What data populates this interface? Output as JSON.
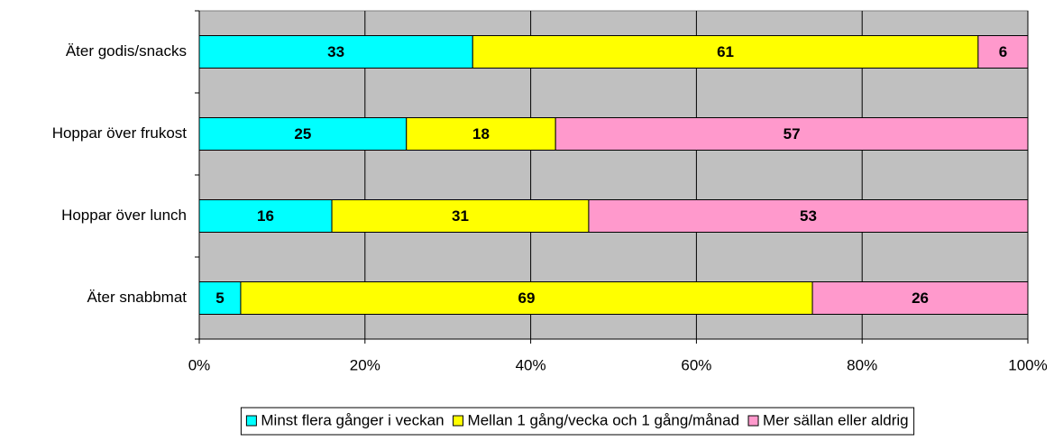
{
  "chart_data": {
    "type": "stacked_barh",
    "categories": [
      "Äter godis/snacks",
      "Hoppar över frukost",
      "Hoppar över lunch",
      "Äter snabbmat"
    ],
    "series": [
      {
        "name": "Minst flera gånger i veckan",
        "color": "#00ffff",
        "values": [
          33,
          25,
          16,
          5
        ]
      },
      {
        "name": "Mellan 1 gång/vecka och 1 gång/månad",
        "color": "#ffff00",
        "values": [
          61,
          18,
          31,
          69
        ]
      },
      {
        "name": "Mer sällan eller aldrig",
        "color": "#ff99cc",
        "values": [
          6,
          57,
          53,
          26
        ]
      }
    ],
    "xlim": [
      0,
      100
    ],
    "xticks": [
      {
        "value": 0,
        "label": "0%"
      },
      {
        "value": 20,
        "label": "20%"
      },
      {
        "value": 40,
        "label": "40%"
      },
      {
        "value": 60,
        "label": "60%"
      },
      {
        "value": 80,
        "label": "80%"
      },
      {
        "value": 100,
        "label": "100%"
      }
    ],
    "grid": true,
    "legend": "bottom"
  }
}
